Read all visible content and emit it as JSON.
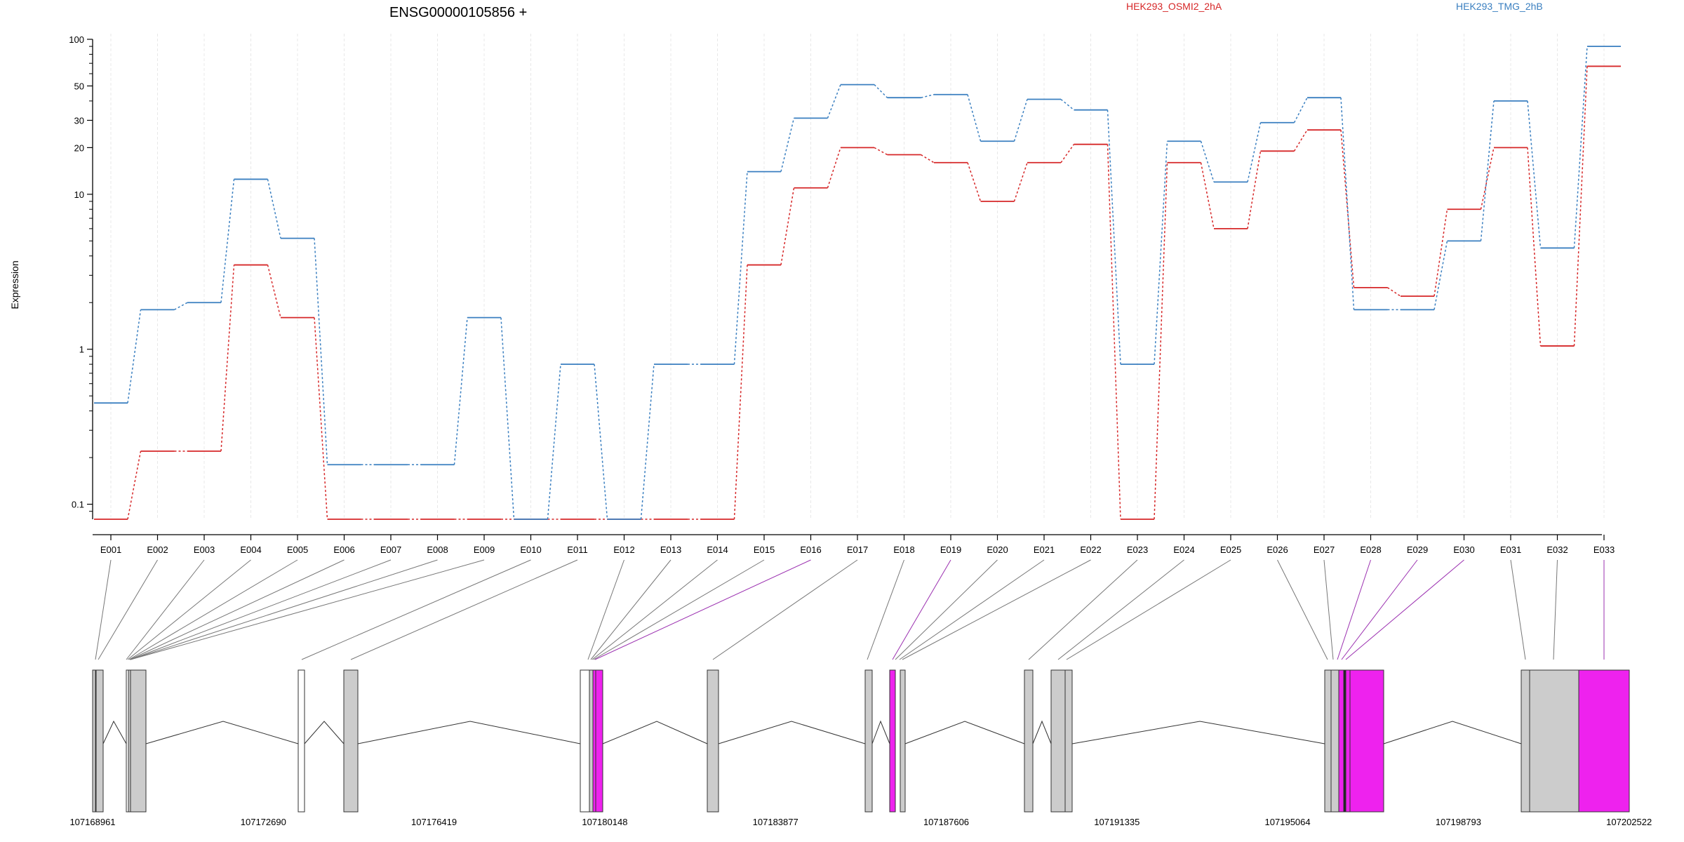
{
  "chart_data": {
    "type": "line",
    "title": "ENSG00000105856 +",
    "ylabel": "Expression",
    "yscale": "log",
    "ylim": [
      0.08,
      100
    ],
    "yticks": [
      {
        "value": 0.1,
        "label": "0.1"
      },
      {
        "value": 1,
        "label": "1"
      },
      {
        "value": 10,
        "label": "10"
      },
      {
        "value": 20,
        "label": "20"
      },
      {
        "value": 30,
        "label": "30"
      },
      {
        "value": 50,
        "label": "50"
      },
      {
        "value": 100,
        "label": "100"
      }
    ],
    "grid": "vertical",
    "legend_position": "top-right",
    "categories": [
      "E001",
      "E002",
      "E003",
      "E004",
      "E005",
      "E006",
      "E007",
      "E008",
      "E009",
      "E010",
      "E011",
      "E012",
      "E013",
      "E014",
      "E015",
      "E016",
      "E017",
      "E018",
      "E019",
      "E020",
      "E021",
      "E022",
      "E023",
      "E024",
      "E025",
      "E026",
      "E027",
      "E028",
      "E029",
      "E030",
      "E031",
      "E032",
      "E033"
    ],
    "series": [
      {
        "name": "HEK293_OSMI2_2hA",
        "color": "#d62728",
        "values": [
          0.08,
          0.22,
          0.22,
          3.5,
          1.6,
          0.08,
          0.08,
          0.08,
          0.08,
          0.08,
          0.08,
          0.08,
          0.08,
          0.08,
          3.5,
          11,
          20,
          18,
          16,
          9,
          16,
          21,
          0.08,
          16,
          6,
          19,
          26,
          2.5,
          2.2,
          8,
          20,
          1.05,
          67
        ]
      },
      {
        "name": "HEK293_TMG_2hB",
        "color": "#3a7fc0",
        "values": [
          0.45,
          1.8,
          2,
          12.5,
          5.2,
          0.18,
          0.18,
          0.18,
          1.6,
          0.08,
          0.8,
          0.08,
          0.8,
          0.8,
          14,
          31,
          51,
          42,
          44,
          22,
          41,
          35,
          0.8,
          22,
          12,
          29,
          42,
          1.8,
          1.8,
          5,
          40,
          4.5,
          90
        ]
      }
    ]
  },
  "gene_model": {
    "exon_colors": {
      "constitutive": "#cccccc",
      "novel": "#ffffff",
      "significant": "#ee22ee"
    },
    "coordinate_labels": [
      "107168961",
      "107172690",
      "107176419",
      "107180148",
      "107183877",
      "107187606",
      "107191335",
      "107195064",
      "107198793",
      "107202522"
    ]
  }
}
